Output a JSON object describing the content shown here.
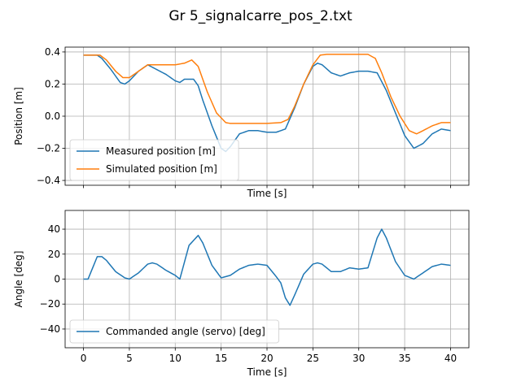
{
  "figure": {
    "title": "Gr 5_signalcarre_pos_2.txt",
    "background": "#ffffff"
  },
  "chart_data": [
    {
      "type": "line",
      "xlabel": "Time [s]",
      "ylabel": "Position [m]",
      "xlim": [
        -2,
        42
      ],
      "ylim": [
        -0.43,
        0.43
      ],
      "xticks": [
        0,
        5,
        10,
        15,
        20,
        25,
        30,
        35,
        40
      ],
      "yticks": [
        -0.4,
        -0.2,
        0.0,
        0.2,
        0.4
      ],
      "ytick_labels": [
        "−0.4",
        "−0.2",
        "0.0",
        "0.2",
        "0.4"
      ],
      "show_xtick_labels": false,
      "grid": true,
      "legend": "lower-left",
      "series": [
        {
          "name": "Measured position [m]",
          "color": "#1f77b4",
          "x": [
            0,
            1.5,
            2,
            3,
            4,
            4.5,
            5,
            6,
            7,
            8,
            9,
            10,
            10.5,
            11,
            12,
            12.5,
            13,
            14,
            15,
            15.5,
            16,
            17,
            18,
            19,
            20,
            21,
            22,
            23,
            24,
            25,
            25.5,
            26,
            27,
            28,
            29,
            30,
            31,
            32,
            33,
            34,
            35,
            36,
            37,
            38,
            39,
            40
          ],
          "y": [
            0.38,
            0.38,
            0.36,
            0.29,
            0.21,
            0.2,
            0.22,
            0.28,
            0.32,
            0.29,
            0.26,
            0.22,
            0.21,
            0.23,
            0.23,
            0.19,
            0.1,
            -0.06,
            -0.2,
            -0.22,
            -0.19,
            -0.11,
            -0.09,
            -0.09,
            -0.1,
            -0.1,
            -0.08,
            0.05,
            0.2,
            0.31,
            0.33,
            0.32,
            0.27,
            0.25,
            0.27,
            0.28,
            0.28,
            0.27,
            0.16,
            0.02,
            -0.12,
            -0.2,
            -0.17,
            -0.11,
            -0.08,
            -0.09
          ]
        },
        {
          "name": "Simulated position [m]",
          "color": "#ff7f0e",
          "x": [
            0,
            1.8,
            2.5,
            3.5,
            4.3,
            5,
            6,
            7,
            8,
            10,
            11,
            11.8,
            12.5,
            13.5,
            14.5,
            15.5,
            16,
            20,
            21.5,
            22.3,
            23,
            24,
            25,
            25.8,
            26.5,
            31,
            31.8,
            32.5,
            33.5,
            34.5,
            35.5,
            36.3,
            37,
            38,
            39,
            40
          ],
          "y": [
            0.38,
            0.38,
            0.35,
            0.28,
            0.24,
            0.24,
            0.28,
            0.32,
            0.32,
            0.32,
            0.33,
            0.35,
            0.31,
            0.15,
            0.02,
            -0.04,
            -0.045,
            -0.045,
            -0.04,
            -0.02,
            0.06,
            0.2,
            0.32,
            0.38,
            0.385,
            0.385,
            0.36,
            0.27,
            0.12,
            0.0,
            -0.09,
            -0.11,
            -0.09,
            -0.06,
            -0.04,
            -0.04
          ]
        }
      ]
    },
    {
      "type": "line",
      "xlabel": "Time [s]",
      "ylabel": "Angle [deg]",
      "xlim": [
        -2,
        42
      ],
      "ylim": [
        -55,
        55
      ],
      "xticks": [
        0,
        5,
        10,
        15,
        20,
        25,
        30,
        35,
        40
      ],
      "yticks": [
        -40,
        -20,
        0,
        20,
        40
      ],
      "ytick_labels": [
        "−40",
        "−20",
        "0",
        "20",
        "40"
      ],
      "show_xtick_labels": true,
      "grid": true,
      "legend": "lower-left",
      "series": [
        {
          "name": "Commanded angle (servo) [deg]",
          "color": "#1f77b4",
          "x": [
            0,
            0.5,
            1.5,
            2,
            2.5,
            3.5,
            4.5,
            5,
            6,
            7,
            7.5,
            8,
            9,
            10,
            10.5,
            11.5,
            12.5,
            13,
            14,
            15,
            16,
            17,
            18,
            19,
            20,
            21,
            21.5,
            22,
            22.5,
            23,
            24,
            25,
            25.5,
            26,
            27,
            28,
            29,
            30,
            31,
            32,
            32.5,
            33,
            34,
            35,
            36,
            37,
            38,
            39,
            40
          ],
          "y": [
            0,
            0,
            18,
            18,
            15,
            6,
            1,
            0,
            5,
            12,
            13,
            12,
            7,
            3,
            0,
            27,
            35,
            29,
            11,
            1,
            3,
            8,
            11,
            12,
            11,
            2,
            -3,
            -15,
            -21,
            -13,
            4,
            12,
            13,
            12,
            6,
            6,
            9,
            8,
            9,
            33,
            40,
            33,
            14,
            3,
            0,
            5,
            10,
            12,
            11
          ]
        }
      ]
    }
  ]
}
